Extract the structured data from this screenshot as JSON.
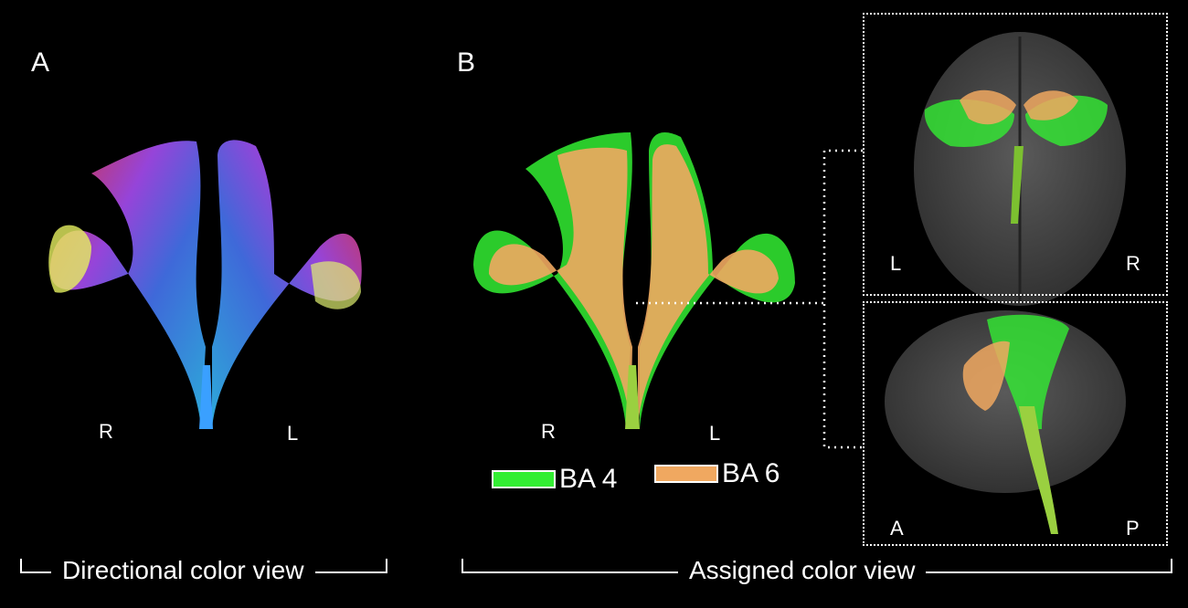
{
  "panels": {
    "a": {
      "letter": "A",
      "orientation": {
        "left": "R",
        "right": "L"
      },
      "caption": "Directional color view"
    },
    "b": {
      "letter": "B",
      "orientation": {
        "left": "R",
        "right": "L"
      },
      "caption": "Assigned color view",
      "legend": [
        {
          "label": "BA 4",
          "color": "#33ee33"
        },
        {
          "label": "BA 6",
          "color": "#f0a860"
        }
      ],
      "axial_view": {
        "left": "L",
        "right": "R"
      },
      "sagittal_view": {
        "left": "A",
        "right": "P"
      }
    }
  },
  "colors": {
    "background": "#000000",
    "brain": "#4a4a4a",
    "ba4": "#33ee33",
    "ba6": "#f0a860"
  }
}
